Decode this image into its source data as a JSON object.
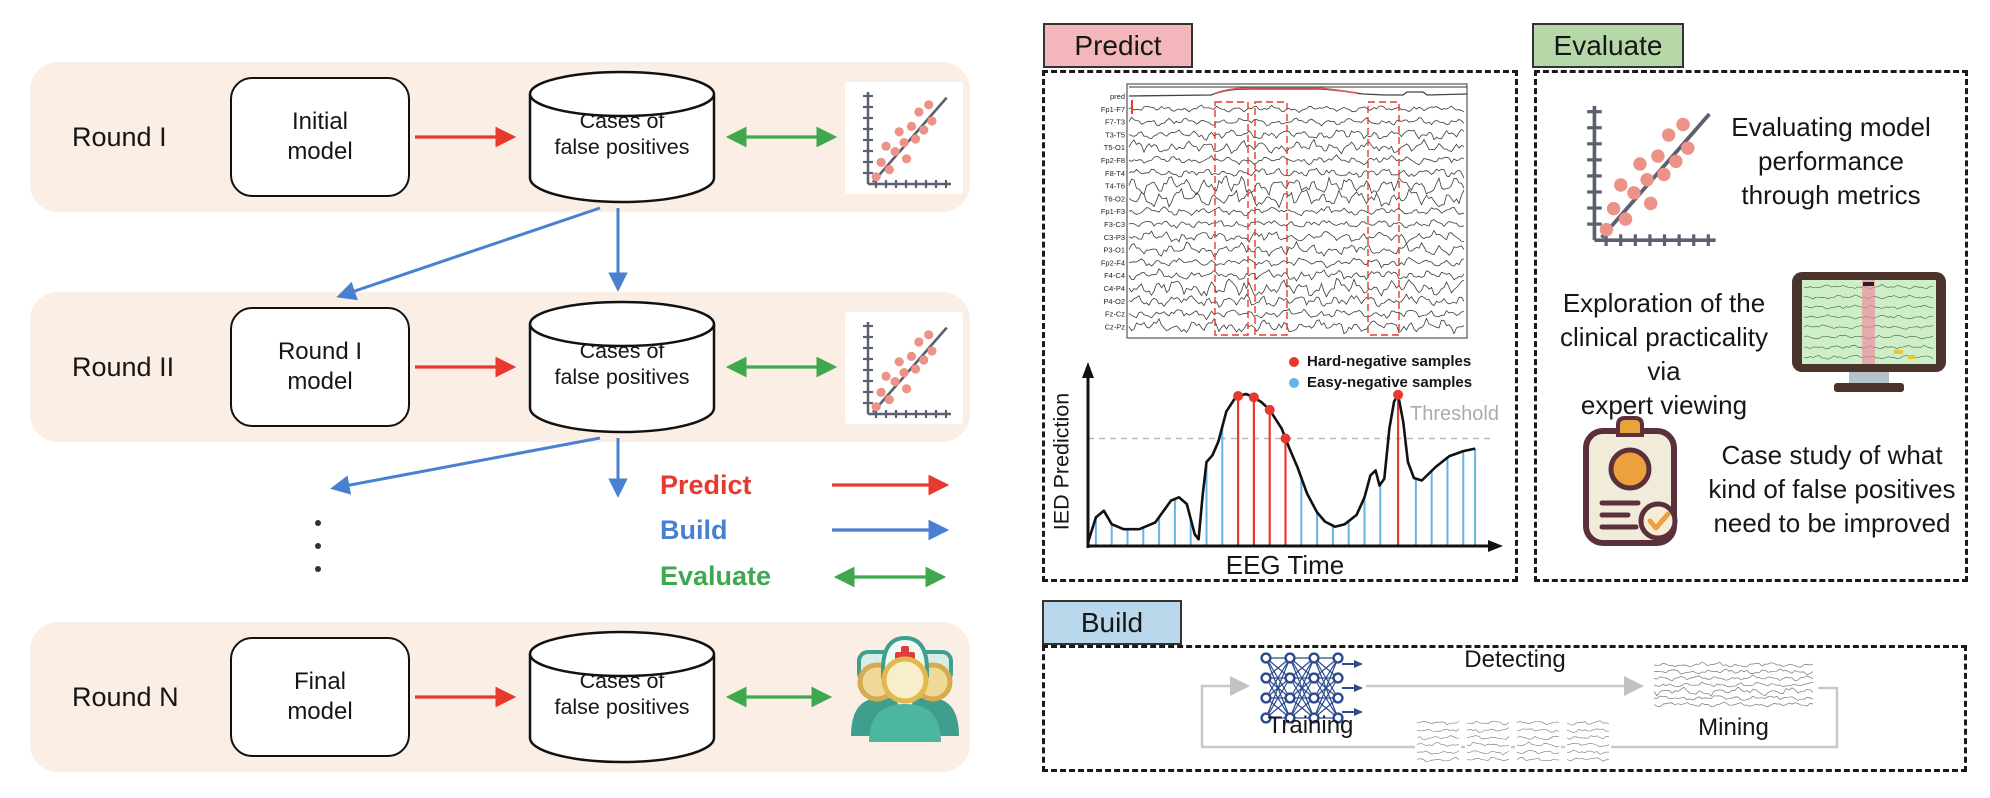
{
  "left": {
    "rounds": [
      {
        "label": "Round I",
        "model_lines": [
          "Initial",
          "model"
        ],
        "db_lines": [
          "Cases of",
          "false positives"
        ],
        "result_icon": "scatter-metrics"
      },
      {
        "label": "Round II",
        "model_lines": [
          "Round I",
          "model"
        ],
        "db_lines": [
          "Cases of",
          "false positives"
        ],
        "result_icon": "scatter-metrics"
      },
      {
        "label": "Round N",
        "model_lines": [
          "Final",
          "model"
        ],
        "db_lines": [
          "Cases of",
          "false positives"
        ],
        "result_icon": "medical-team"
      }
    ],
    "legend": [
      {
        "label": "Predict",
        "color": "#e8392e",
        "arrow": "single"
      },
      {
        "label": "Build",
        "color": "#4a80d1",
        "arrow": "single"
      },
      {
        "label": "Evaluate",
        "color": "#3fa84e",
        "arrow": "double"
      }
    ]
  },
  "panels": {
    "predict": {
      "title": "Predict",
      "eeg": {
        "channels": [
          "pred",
          "Fp1-F7",
          "F7-T3",
          "T3-T5",
          "T5-O1",
          "Fp2-F8",
          "F8-T4",
          "T4-T6",
          "T6-O2",
          "Fp1-F3",
          "F3-C3",
          "C3-P3",
          "P3-O1",
          "Fp2-F4",
          "F4-C4",
          "C4-P4",
          "P4-O2",
          "Fz-Cz",
          "Cz-Pz"
        ]
      },
      "ied": {
        "ylabel": "IED Prediction",
        "xlabel": "EEG Time",
        "threshold_label": "Threshold",
        "legend": [
          {
            "label": "Hard-negative samples"
          },
          {
            "label": "Easy-negative samples"
          }
        ]
      }
    },
    "evaluate": {
      "title": "Evaluate",
      "items": [
        {
          "icon": "scatter-metrics",
          "lines": [
            "Evaluating model",
            "performance",
            "through metrics"
          ]
        },
        {
          "icon": "eeg-monitor",
          "lines": [
            "Exploration of the",
            "clinical practicality via",
            "expert viewing"
          ]
        },
        {
          "icon": "clipboard-check",
          "lines": [
            "Case study of what",
            "kind of false positives",
            "need to be improved"
          ]
        }
      ]
    },
    "build": {
      "title": "Build",
      "training": "Training",
      "detecting": "Detecting",
      "mining": "Mining"
    }
  },
  "chart_data": [
    {
      "id": "ied-prediction-curve",
      "type": "line",
      "xlabel": "EEG Time",
      "ylabel": "IED Prediction",
      "x_range": [
        0,
        100
      ],
      "y_range": [
        0,
        1
      ],
      "threshold": 0.64,
      "grid": false,
      "legend_position": "top-right",
      "legend": [
        {
          "label": "Hard-negative samples",
          "color": "#e8392e"
        },
        {
          "label": "Easy-negative samples",
          "color": "#63b5e5"
        }
      ],
      "curve": [
        [
          0,
          0.02
        ],
        [
          2,
          0.17
        ],
        [
          4,
          0.21
        ],
        [
          6,
          0.13
        ],
        [
          9,
          0.1
        ],
        [
          13,
          0.1
        ],
        [
          17,
          0.14
        ],
        [
          21,
          0.27
        ],
        [
          23,
          0.29
        ],
        [
          25,
          0.25
        ],
        [
          27,
          0.07
        ],
        [
          28,
          0.04
        ],
        [
          29,
          0.3
        ],
        [
          30,
          0.5
        ],
        [
          31.5,
          0.54
        ],
        [
          33,
          0.62
        ],
        [
          35,
          0.8
        ],
        [
          37.5,
          0.89
        ],
        [
          40,
          0.905
        ],
        [
          42,
          0.885
        ],
        [
          44,
          0.855
        ],
        [
          46,
          0.81
        ],
        [
          49,
          0.7
        ],
        [
          51,
          0.58
        ],
        [
          53,
          0.47
        ],
        [
          55.5,
          0.31
        ],
        [
          58,
          0.2
        ],
        [
          60,
          0.145
        ],
        [
          62.5,
          0.115
        ],
        [
          65,
          0.13
        ],
        [
          68,
          0.185
        ],
        [
          70,
          0.29
        ],
        [
          71.5,
          0.42
        ],
        [
          72.8,
          0.45
        ],
        [
          73.8,
          0.36
        ],
        [
          75,
          0.4
        ],
        [
          76.3,
          0.7
        ],
        [
          77.5,
          0.86
        ],
        [
          78.5,
          0.9
        ],
        [
          79.8,
          0.74
        ],
        [
          81,
          0.5
        ],
        [
          82.5,
          0.405
        ],
        [
          84.5,
          0.39
        ],
        [
          88,
          0.47
        ],
        [
          91.5,
          0.535
        ],
        [
          95,
          0.565
        ],
        [
          98,
          0.58
        ]
      ],
      "stems": {
        "easy_x": [
          2,
          6,
          10,
          14,
          18,
          22,
          26,
          30,
          34,
          54,
          58,
          62,
          66,
          70,
          74,
          83,
          87,
          91,
          95,
          98
        ],
        "hard_x": [
          38,
          42,
          46,
          50,
          78.5
        ]
      }
    },
    {
      "id": "scatter-metrics-icon",
      "type": "scatter",
      "x_range": [
        0,
        100
      ],
      "y_range": [
        0,
        100
      ],
      "fit_line": [
        [
          6,
          2
        ],
        [
          96,
          96
        ]
      ],
      "points": [
        [
          10,
          8
        ],
        [
          16,
          24
        ],
        [
          22,
          42
        ],
        [
          26,
          16
        ],
        [
          33,
          36
        ],
        [
          38,
          58
        ],
        [
          44,
          46
        ],
        [
          47,
          28
        ],
        [
          53,
          64
        ],
        [
          58,
          50
        ],
        [
          62,
          80
        ],
        [
          68,
          60
        ],
        [
          74,
          88
        ],
        [
          78,
          70
        ]
      ]
    }
  ],
  "colors": {
    "band": "#fbeee4",
    "predict_red": "#e8392e",
    "build_blue": "#4a80d1",
    "evaluate_green": "#3fa84e",
    "header_predict": "#f3b7bb",
    "header_evaluate": "#b6d8a9",
    "header_build": "#bad8ec",
    "scatter_dot": "#ec9287",
    "easy_blue": "#63b5e5",
    "threshold_gray": "#ababab"
  }
}
